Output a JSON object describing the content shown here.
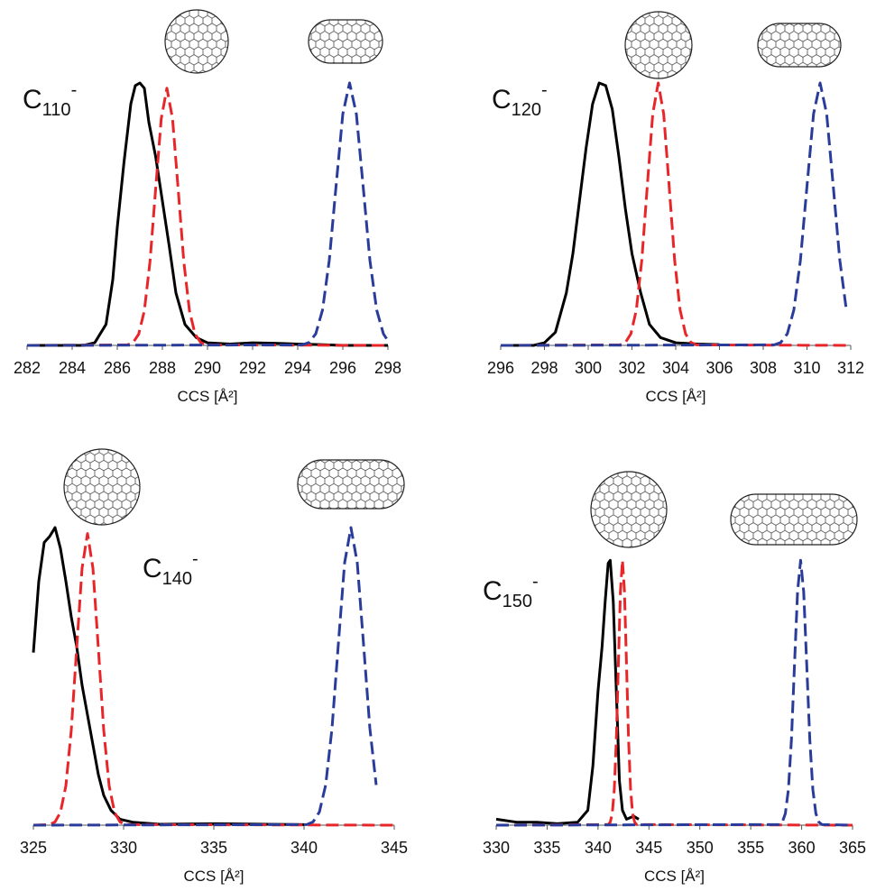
{
  "chart_data": [
    {
      "type": "line",
      "annotation": {
        "text": "C",
        "subscript": "110",
        "superscript": "-"
      },
      "x_label": "CCS [Å²]",
      "xlim": [
        282,
        298
      ],
      "xticks": [
        282,
        284,
        286,
        288,
        290,
        292,
        294,
        296,
        298
      ],
      "ylim": [
        0,
        1
      ],
      "series": [
        {
          "color": "#000000",
          "style": "solid",
          "x": [
            282,
            284.5,
            285,
            285.5,
            285.8,
            286,
            286.3,
            286.6,
            286.8,
            287,
            287.2,
            287.4,
            287.7,
            288,
            288.3,
            288.6,
            289,
            289.5,
            290,
            291,
            292,
            293,
            294,
            295,
            296,
            298
          ],
          "values": [
            0,
            0,
            0.01,
            0.08,
            0.25,
            0.45,
            0.7,
            0.92,
            0.99,
            1,
            0.98,
            0.85,
            0.72,
            0.55,
            0.38,
            0.2,
            0.08,
            0.03,
            0.01,
            0.005,
            0.01,
            0.008,
            0.005,
            0.003,
            0,
            0
          ]
        },
        {
          "color": "#e8262a",
          "style": "dashed",
          "x": [
            282,
            286.45,
            286.7,
            286.95,
            287.2,
            287.45,
            287.7,
            287.95,
            288.2,
            288.45,
            288.7,
            288.95,
            289.2,
            289.45,
            289.7,
            289.95,
            298
          ],
          "values": [
            0,
            0.002,
            0.011,
            0.043,
            0.132,
            0.319,
            0.595,
            0.864,
            0.98,
            0.864,
            0.595,
            0.319,
            0.132,
            0.043,
            0.011,
            0.002,
            0
          ]
        },
        {
          "color": "#2a3c9a",
          "style": "dashed",
          "x": [
            282,
            294.2,
            294.5,
            294.8,
            295.1,
            295.4,
            295.7,
            296.0,
            296.3,
            296.6,
            296.9,
            297.2,
            297.5,
            297.8,
            298
          ],
          "values": [
            0,
            0.002,
            0.011,
            0.044,
            0.135,
            0.325,
            0.607,
            0.882,
            1,
            0.882,
            0.607,
            0.325,
            0.135,
            0.044,
            0.018
          ]
        }
      ]
    },
    {
      "type": "line",
      "annotation": {
        "text": "C",
        "subscript": "120",
        "superscript": "-"
      },
      "x_label": "CCS [Å²]",
      "xlim": [
        296,
        312
      ],
      "xticks": [
        296,
        298,
        300,
        302,
        304,
        306,
        308,
        310,
        312
      ],
      "ylim": [
        0,
        1
      ],
      "series": [
        {
          "color": "#000000",
          "style": "solid",
          "x": [
            296,
            297.5,
            298,
            298.5,
            299,
            299.3,
            299.6,
            299.9,
            300.2,
            300.5,
            300.8,
            301.1,
            301.4,
            301.7,
            302,
            302.4,
            302.8,
            303.3,
            304,
            305,
            306
          ],
          "values": [
            0,
            0,
            0.01,
            0.05,
            0.2,
            0.35,
            0.55,
            0.75,
            0.92,
            1,
            0.99,
            0.9,
            0.72,
            0.52,
            0.35,
            0.2,
            0.08,
            0.03,
            0.01,
            0.005,
            0.003
          ]
        },
        {
          "color": "#e8262a",
          "style": "dashed",
          "x": [
            296,
            301.45,
            301.7,
            301.95,
            302.2,
            302.45,
            302.7,
            302.95,
            303.2,
            303.45,
            303.7,
            303.95,
            304.2,
            304.45,
            304.7,
            304.95,
            312
          ],
          "values": [
            0,
            0.002,
            0.011,
            0.044,
            0.135,
            0.325,
            0.607,
            0.882,
            1,
            0.882,
            0.607,
            0.325,
            0.135,
            0.044,
            0.011,
            0.002,
            0
          ]
        },
        {
          "color": "#2a3c9a",
          "style": "dashed",
          "x": [
            296,
            308.5,
            308.8,
            309.1,
            309.4,
            309.7,
            310.0,
            310.3,
            310.6,
            310.9,
            311.2,
            311.5,
            311.8
          ],
          "values": [
            0,
            0.002,
            0.011,
            0.044,
            0.135,
            0.325,
            0.607,
            0.882,
            1,
            0.882,
            0.607,
            0.325,
            0.135
          ]
        }
      ]
    },
    {
      "type": "line",
      "annotation": {
        "text": "C",
        "subscript": "140",
        "superscript": "-"
      },
      "x_label": "CCS [Å²]",
      "xlim": [
        325,
        345
      ],
      "xticks": [
        325,
        330,
        335,
        340,
        345
      ],
      "ylim": [
        0,
        1
      ],
      "series": [
        {
          "color": "#000000",
          "style": "solid",
          "x": [
            325,
            325.3,
            325.6,
            325.9,
            326.2,
            326.5,
            326.8,
            327.1,
            327.4,
            327.7,
            328,
            328.3,
            328.6,
            328.9,
            329.3,
            329.8,
            330.5,
            332,
            335,
            338,
            340
          ],
          "values": [
            0.58,
            0.82,
            0.95,
            0.97,
            1,
            0.93,
            0.82,
            0.7,
            0.6,
            0.47,
            0.37,
            0.27,
            0.17,
            0.1,
            0.05,
            0.02,
            0.01,
            0.003,
            0.005,
            0.003,
            0.002
          ]
        },
        {
          "color": "#e8262a",
          "style": "dashed",
          "x": [
            325,
            325.9,
            326.2,
            326.5,
            326.8,
            327.1,
            327.4,
            327.7,
            328.0,
            328.3,
            328.6,
            328.9,
            329.2,
            329.5,
            329.8,
            330.1,
            345
          ],
          "values": [
            0,
            0.002,
            0.011,
            0.043,
            0.132,
            0.319,
            0.595,
            0.864,
            0.98,
            0.864,
            0.595,
            0.319,
            0.132,
            0.043,
            0.011,
            0.002,
            0
          ]
        },
        {
          "color": "#2a3c9a",
          "style": "dashed",
          "x": [
            325,
            340.15,
            340.5,
            340.85,
            341.2,
            341.55,
            341.9,
            342.25,
            342.6,
            342.95,
            343.3,
            343.65,
            344.0
          ],
          "values": [
            0,
            0.002,
            0.011,
            0.044,
            0.135,
            0.325,
            0.607,
            0.882,
            1,
            0.882,
            0.607,
            0.325,
            0.135
          ]
        }
      ]
    },
    {
      "type": "line",
      "annotation": {
        "text": "C",
        "subscript": "150",
        "superscript": "-"
      },
      "x_label": "CCS [Å²]",
      "xlim": [
        330,
        365
      ],
      "xticks": [
        330,
        335,
        340,
        345,
        350,
        355,
        360,
        365
      ],
      "ylim": [
        0,
        1
      ],
      "series": [
        {
          "color": "#000000",
          "style": "solid",
          "x": [
            330,
            332,
            334,
            336,
            338,
            339,
            339.5,
            340,
            340.4,
            340.7,
            341.0,
            341.2,
            341.5,
            341.8,
            342.1,
            342.4,
            342.8,
            343.5,
            344
          ],
          "values": [
            0.02,
            0.01,
            0.01,
            0.005,
            0.01,
            0.05,
            0.2,
            0.45,
            0.6,
            0.75,
            0.88,
            0.89,
            0.75,
            0.45,
            0.15,
            0.05,
            0.02,
            0.03,
            0.02
          ]
        },
        {
          "color": "#e8262a",
          "style": "dashed",
          "x": [
            330,
            341.0,
            341.2,
            341.4,
            341.6,
            341.8,
            342.0,
            342.2,
            342.4,
            342.6,
            342.8,
            343.0,
            343.2,
            343.4,
            343.6,
            343.8,
            365
          ],
          "values": [
            0,
            0.002,
            0.01,
            0.039,
            0.12,
            0.289,
            0.54,
            0.785,
            0.89,
            0.785,
            0.54,
            0.289,
            0.12,
            0.039,
            0.01,
            0.002,
            0
          ]
        },
        {
          "color": "#2a3c9a",
          "style": "dashed",
          "x": [
            330,
            357.8,
            358.1,
            358.4,
            358.7,
            359.0,
            359.3,
            359.6,
            359.9,
            360.2,
            360.5,
            360.8,
            361.1,
            361.4,
            361.7,
            362.0,
            365
          ],
          "values": [
            0,
            0.002,
            0.01,
            0.039,
            0.12,
            0.289,
            0.54,
            0.785,
            0.89,
            0.785,
            0.54,
            0.289,
            0.12,
            0.039,
            0.01,
            0.002,
            0
          ]
        }
      ]
    }
  ]
}
